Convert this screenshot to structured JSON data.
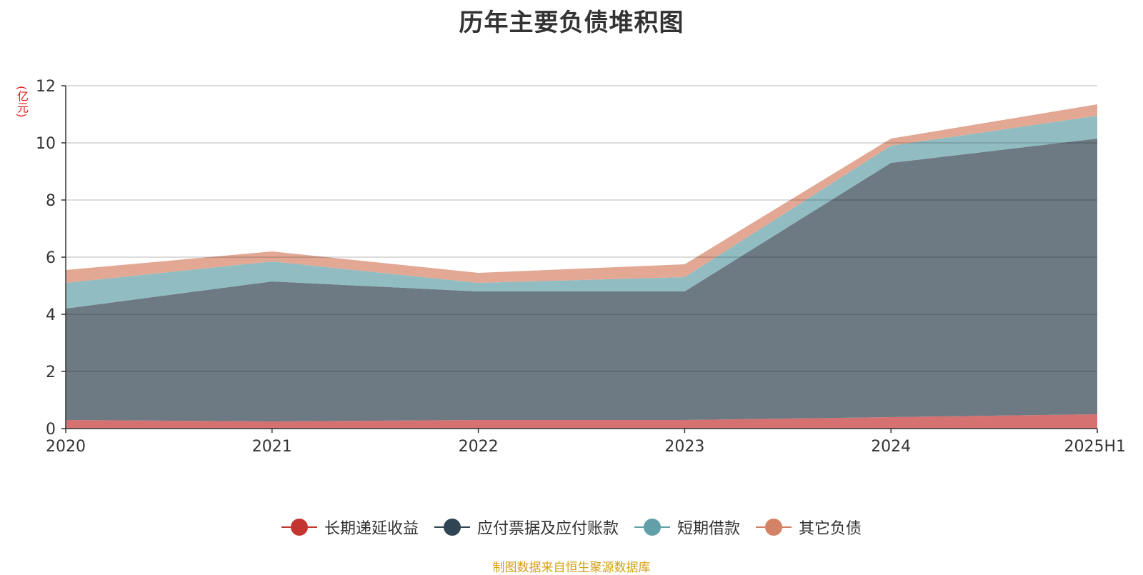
{
  "chart_data": {
    "type": "area",
    "stacked": true,
    "title": "历年主要负债堆积图",
    "unit_label": "亿元",
    "categories": [
      "2020",
      "2021",
      "2022",
      "2023",
      "2024",
      "2025H1"
    ],
    "ylim": [
      0,
      12
    ],
    "yticks": [
      0,
      2,
      4,
      6,
      8,
      10,
      12
    ],
    "grid": true,
    "legend_position": "bottom",
    "series": [
      {
        "name": "长期递延收益",
        "color": "#c23531",
        "fill": "#d57171",
        "values": [
          0.3,
          0.25,
          0.3,
          0.3,
          0.4,
          0.5
        ]
      },
      {
        "name": "应付票据及应付账款",
        "color": "#2f4554",
        "fill": "#6d7a84",
        "values": [
          3.9,
          4.9,
          4.5,
          4.5,
          8.9,
          9.65
        ]
      },
      {
        "name": "短期借款",
        "color": "#61a0a8",
        "fill": "#90bcc2",
        "values": [
          0.9,
          0.7,
          0.3,
          0.5,
          0.6,
          0.8
        ]
      },
      {
        "name": "其它负债",
        "color": "#d48265",
        "fill": "#e2a894",
        "values": [
          0.45,
          0.35,
          0.35,
          0.45,
          0.25,
          0.4
        ]
      }
    ],
    "source": "制图数据来自恒生聚源数据库"
  }
}
